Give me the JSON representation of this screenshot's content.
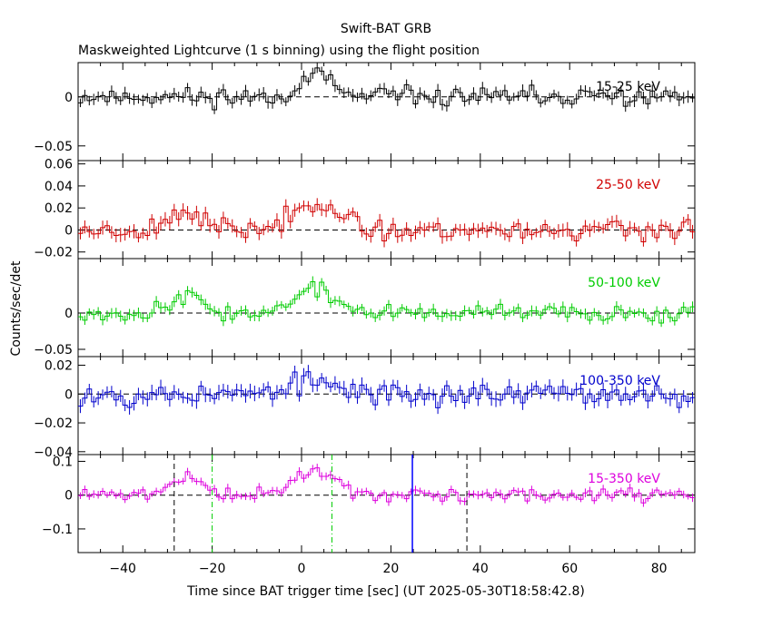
{
  "chart_data": {
    "type": "line",
    "title": "Swift-BAT GRB",
    "subtitle": "Maskweighted Lightcurve (1 s binning) using the flight position",
    "xlabel": "Time since BAT trigger time [sec] (UT 2025-05-30T18:58:42.8)",
    "ylabel": "Counts/sec/det",
    "xlim": [
      -50,
      88
    ],
    "x_ticks": [
      "-40",
      "-20",
      "0",
      "20",
      "40",
      "60",
      "80"
    ],
    "panels": [
      {
        "label": "15-25 keV",
        "color": "#000000",
        "ylim": [
          -0.065,
          0.035
        ],
        "y_ticks": [
          {
            "v": 0,
            "t": "0"
          },
          {
            "v": -0.05,
            "t": "−0.05"
          }
        ],
        "bursts": [
          {
            "center": 3,
            "width": 3.5,
            "amp": 0.022
          }
        ],
        "noise": 0.006,
        "seed": 11
      },
      {
        "label": "25-50 keV",
        "color": "#d00000",
        "ylim": [
          -0.026,
          0.063
        ],
        "y_ticks": [
          {
            "v": 0.06,
            "t": "0.06"
          },
          {
            "v": 0.04,
            "t": "0.04"
          },
          {
            "v": 0.02,
            "t": "0.02"
          },
          {
            "v": 0,
            "t": "0"
          },
          {
            "v": -0.02,
            "t": "−0.02"
          }
        ],
        "bursts": [
          {
            "center": -26,
            "width": 3.5,
            "amp": 0.018
          },
          {
            "center": 3,
            "width": 4.5,
            "amp": 0.028
          }
        ],
        "noise": 0.006,
        "seed": 23
      },
      {
        "label": "50-100 keV",
        "color": "#00cc00",
        "ylim": [
          -0.06,
          0.075
        ],
        "y_ticks": [
          {
            "v": 0,
            "t": "0"
          },
          {
            "v": -0.05,
            "t": "−0.05"
          }
        ],
        "bursts": [
          {
            "center": -26,
            "width": 3.5,
            "amp": 0.024
          },
          {
            "center": 3,
            "width": 4.5,
            "amp": 0.032
          }
        ],
        "noise": 0.007,
        "seed": 37
      },
      {
        "label": "100-350 keV",
        "color": "#0000cc",
        "ylim": [
          -0.042,
          0.026
        ],
        "y_ticks": [
          {
            "v": 0.02,
            "t": "0.02"
          },
          {
            "v": 0,
            "t": "0"
          },
          {
            "v": -0.02,
            "t": "−0.02"
          },
          {
            "v": -0.04,
            "t": "−0.04"
          }
        ],
        "bursts": [
          {
            "center": 3,
            "width": 5,
            "amp": 0.008
          }
        ],
        "noise": 0.005,
        "seed": 53
      },
      {
        "label": "15-350 keV",
        "color": "#dd00dd",
        "ylim": [
          -0.17,
          0.12
        ],
        "y_ticks": [
          {
            "v": 0.1,
            "t": "0.1"
          },
          {
            "v": 0,
            "t": "0"
          },
          {
            "v": -0.1,
            "t": "−0.1"
          }
        ],
        "bursts": [
          {
            "center": -26,
            "width": 3.5,
            "amp": 0.055
          },
          {
            "center": 3,
            "width": 4.5,
            "amp": 0.075
          }
        ],
        "noise": 0.012,
        "seed": 71
      }
    ],
    "markers": [
      {
        "x": -28.5,
        "style": "black-dashed"
      },
      {
        "x": -20,
        "style": "green-dashdot"
      },
      {
        "x": 6.8,
        "style": "green-dashdot"
      },
      {
        "x": 24.8,
        "style": "blue-solid"
      },
      {
        "x": 37,
        "style": "black-dashed"
      }
    ]
  }
}
